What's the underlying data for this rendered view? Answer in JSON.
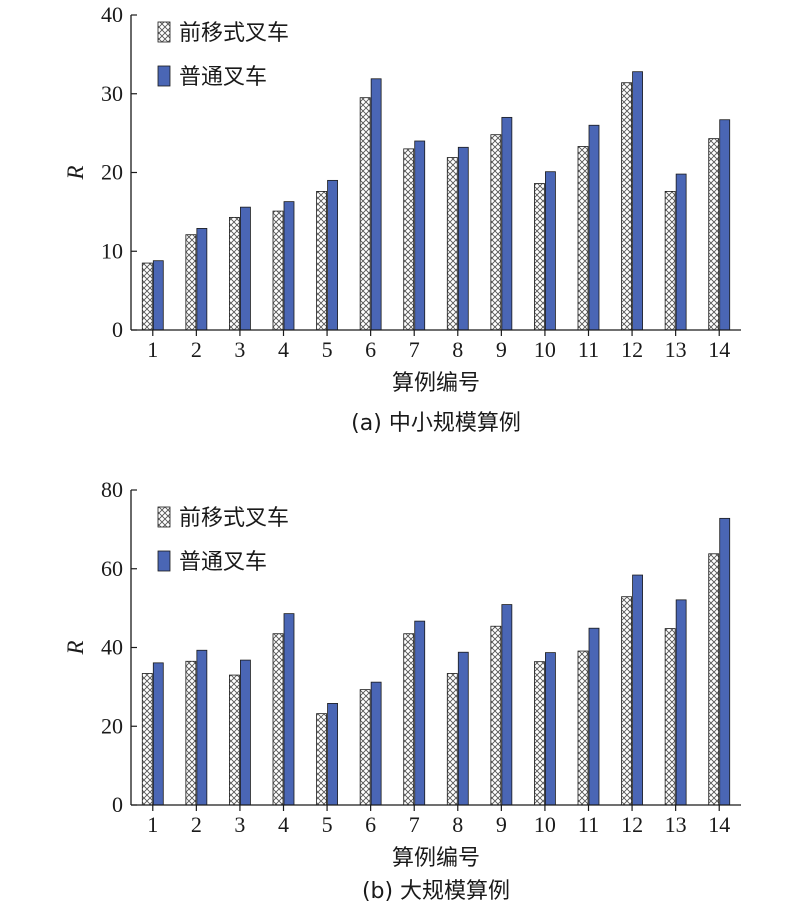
{
  "colors": {
    "front_series_fill": "#ffffff",
    "front_series_hatch": "#555555",
    "normal_series_fill": "#4a66b5",
    "axis": "#1a1a1a"
  },
  "chart_data": [
    {
      "type": "bar",
      "caption": "(a) 中小规模算例",
      "xlabel": "算例编号",
      "ylabel": "R",
      "ylim": [
        0,
        40
      ],
      "yticks": [
        0,
        10,
        20,
        30,
        40
      ],
      "categories": [
        "1",
        "2",
        "3",
        "4",
        "5",
        "6",
        "7",
        "8",
        "9",
        "10",
        "11",
        "12",
        "13",
        "14"
      ],
      "legend_position": "top-left",
      "grid": false,
      "series": [
        {
          "name": "前移式叉车",
          "pattern": "crosshatch",
          "values": [
            8.5,
            12.1,
            14.3,
            15.1,
            17.6,
            29.5,
            23.0,
            21.9,
            24.8,
            18.6,
            23.3,
            31.4,
            17.6,
            24.3
          ]
        },
        {
          "name": "普通叉车",
          "pattern": "solid",
          "values": [
            8.8,
            12.9,
            15.6,
            16.3,
            19.0,
            31.9,
            24.0,
            23.2,
            27.0,
            20.1,
            26.0,
            32.8,
            19.8,
            26.7
          ]
        }
      ]
    },
    {
      "type": "bar",
      "caption": "(b) 大规模算例",
      "xlabel": "算例编号",
      "ylabel": "R",
      "ylim": [
        0,
        80
      ],
      "yticks": [
        0,
        20,
        40,
        60,
        80
      ],
      "categories": [
        "1",
        "2",
        "3",
        "4",
        "5",
        "6",
        "7",
        "8",
        "9",
        "10",
        "11",
        "12",
        "13",
        "14"
      ],
      "legend_position": "top-left",
      "grid": false,
      "series": [
        {
          "name": "前移式叉车",
          "pattern": "crosshatch",
          "values": [
            33.4,
            36.5,
            33.0,
            43.5,
            23.2,
            29.3,
            43.5,
            33.4,
            45.4,
            36.4,
            39.1,
            52.9,
            44.8,
            63.8
          ]
        },
        {
          "name": "普通叉车",
          "pattern": "solid",
          "values": [
            36.1,
            39.3,
            36.8,
            48.6,
            25.8,
            31.2,
            46.7,
            38.8,
            50.9,
            38.7,
            44.9,
            58.4,
            52.1,
            72.8
          ]
        }
      ]
    }
  ]
}
